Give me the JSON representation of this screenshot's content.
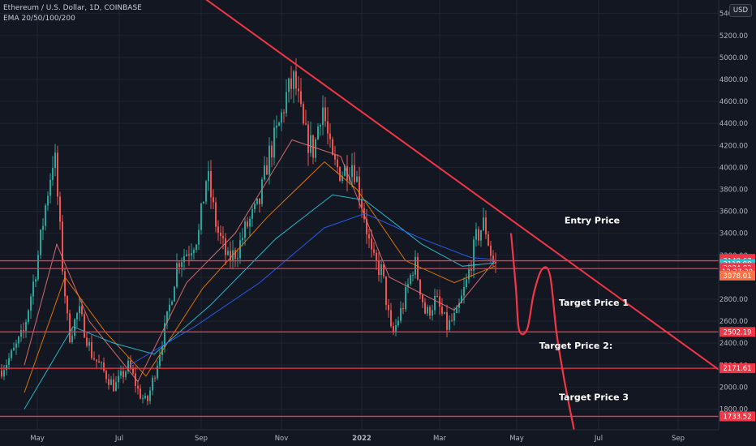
{
  "header": {
    "title": "Ethereum / U.S. Dollar, 1D, COINBASE",
    "indicator": "EMA 20/50/100/200"
  },
  "currency_button": "USD",
  "colors": {
    "bg": "#131722",
    "up": "#26a69a",
    "down": "#ef5350",
    "drawing": "#f23645",
    "ema20": "#e57373",
    "ema50": "#f57c00",
    "ema100": "#26c6da",
    "ema200": "#2962ff",
    "grid": "#1f2433"
  },
  "chart_data": {
    "type": "candlestick",
    "x_ticks": [
      "May",
      "Jul",
      "Sep",
      "Nov",
      "2022",
      "Mar",
      "May",
      "Jul",
      "Sep"
    ],
    "y_ticks": [
      1800,
      2000,
      2200,
      2400,
      2600,
      2800,
      3000,
      3200,
      3400,
      3600,
      3800,
      4000,
      4200,
      4400,
      4600,
      4800,
      5000,
      5200,
      5400
    ],
    "ylim": [
      1700,
      5500
    ],
    "price_path": [
      {
        "x": 0,
        "y": 2150
      },
      {
        "x": 14,
        "y": 2300
      },
      {
        "x": 28,
        "y": 2500
      },
      {
        "x": 44,
        "y": 3100
      },
      {
        "x": 56,
        "y": 3700
      },
      {
        "x": 66,
        "y": 4150
      },
      {
        "x": 76,
        "y": 3100
      },
      {
        "x": 84,
        "y": 2450
      },
      {
        "x": 96,
        "y": 2700
      },
      {
        "x": 112,
        "y": 2300
      },
      {
        "x": 126,
        "y": 2150
      },
      {
        "x": 140,
        "y": 2000
      },
      {
        "x": 158,
        "y": 2200
      },
      {
        "x": 170,
        "y": 1950
      },
      {
        "x": 180,
        "y": 1850
      },
      {
        "x": 192,
        "y": 2200
      },
      {
        "x": 206,
        "y": 2650
      },
      {
        "x": 218,
        "y": 3150
      },
      {
        "x": 232,
        "y": 3250
      },
      {
        "x": 244,
        "y": 3400
      },
      {
        "x": 254,
        "y": 3950
      },
      {
        "x": 266,
        "y": 3450
      },
      {
        "x": 280,
        "y": 3150
      },
      {
        "x": 292,
        "y": 3250
      },
      {
        "x": 302,
        "y": 3450
      },
      {
        "x": 318,
        "y": 3650
      },
      {
        "x": 330,
        "y": 4100
      },
      {
        "x": 342,
        "y": 4350
      },
      {
        "x": 352,
        "y": 4650
      },
      {
        "x": 362,
        "y": 4800
      },
      {
        "x": 374,
        "y": 4300
      },
      {
        "x": 386,
        "y": 4150
      },
      {
        "x": 396,
        "y": 4600
      },
      {
        "x": 408,
        "y": 4050
      },
      {
        "x": 420,
        "y": 3950
      },
      {
        "x": 434,
        "y": 4050
      },
      {
        "x": 446,
        "y": 3650
      },
      {
        "x": 458,
        "y": 3150
      },
      {
        "x": 470,
        "y": 3050
      },
      {
        "x": 482,
        "y": 2450
      },
      {
        "x": 496,
        "y": 2750
      },
      {
        "x": 510,
        "y": 3150
      },
      {
        "x": 524,
        "y": 2650
      },
      {
        "x": 536,
        "y": 2800
      },
      {
        "x": 550,
        "y": 2550
      },
      {
        "x": 562,
        "y": 2650
      },
      {
        "x": 574,
        "y": 2950
      },
      {
        "x": 586,
        "y": 3350
      },
      {
        "x": 596,
        "y": 3500
      },
      {
        "x": 606,
        "y": 3150
      },
      {
        "x": 612,
        "y": 3080
      }
    ],
    "ema_paths": {
      "ema20": [
        {
          "x": 30,
          "y": 2200
        },
        {
          "x": 70,
          "y": 3300
        },
        {
          "x": 110,
          "y": 2600
        },
        {
          "x": 170,
          "y": 2050
        },
        {
          "x": 230,
          "y": 2950
        },
        {
          "x": 290,
          "y": 3400
        },
        {
          "x": 360,
          "y": 4250
        },
        {
          "x": 420,
          "y": 4100
        },
        {
          "x": 480,
          "y": 3000
        },
        {
          "x": 560,
          "y": 2700
        },
        {
          "x": 610,
          "y": 3150
        }
      ],
      "ema50": [
        {
          "x": 30,
          "y": 1950
        },
        {
          "x": 80,
          "y": 3000
        },
        {
          "x": 130,
          "y": 2500
        },
        {
          "x": 180,
          "y": 2100
        },
        {
          "x": 250,
          "y": 2900
        },
        {
          "x": 330,
          "y": 3550
        },
        {
          "x": 400,
          "y": 4050
        },
        {
          "x": 440,
          "y": 3800
        },
        {
          "x": 500,
          "y": 3150
        },
        {
          "x": 560,
          "y": 2950
        },
        {
          "x": 610,
          "y": 3100
        }
      ],
      "ema100": [
        {
          "x": 30,
          "y": 1800
        },
        {
          "x": 90,
          "y": 2550
        },
        {
          "x": 140,
          "y": 2400
        },
        {
          "x": 190,
          "y": 2300
        },
        {
          "x": 260,
          "y": 2750
        },
        {
          "x": 340,
          "y": 3350
        },
        {
          "x": 410,
          "y": 3750
        },
        {
          "x": 450,
          "y": 3700
        },
        {
          "x": 520,
          "y": 3300
        },
        {
          "x": 570,
          "y": 3100
        },
        {
          "x": 610,
          "y": 3130
        }
      ],
      "ema200": [
        {
          "x": 160,
          "y": 2200
        },
        {
          "x": 240,
          "y": 2550
        },
        {
          "x": 320,
          "y": 2950
        },
        {
          "x": 400,
          "y": 3450
        },
        {
          "x": 450,
          "y": 3580
        },
        {
          "x": 520,
          "y": 3350
        },
        {
          "x": 580,
          "y": 3180
        },
        {
          "x": 610,
          "y": 3160
        }
      ]
    },
    "trendline": {
      "from": {
        "x": 248,
        "y": 5560
      },
      "to": {
        "x": 914,
        "y": 2010
      }
    },
    "horizontal_levels": [
      3149.67,
      3078.01,
      2502.19,
      2171.61,
      1733.52
    ],
    "projection_path": [
      {
        "x": 630,
        "y": 3400
      },
      {
        "x": 636,
        "y": 2900
      },
      {
        "x": 640,
        "y": 2520
      },
      {
        "x": 650,
        "y": 2530
      },
      {
        "x": 658,
        "y": 2850
      },
      {
        "x": 668,
        "y": 3070
      },
      {
        "x": 678,
        "y": 3020
      },
      {
        "x": 686,
        "y": 2500
      },
      {
        "x": 696,
        "y": 2050
      },
      {
        "x": 708,
        "y": 1600
      }
    ],
    "annotations": [
      {
        "text": "Entry Price",
        "x": 730,
        "y": 3490
      },
      {
        "text": "Target Price 1",
        "x": 732,
        "y": 2740
      },
      {
        "text": "Target Price 2:",
        "x": 710,
        "y": 2350
      },
      {
        "text": "Target Price 3",
        "x": 732,
        "y": 1880
      }
    ],
    "price_labels": [
      {
        "text": "3166.59",
        "price": 3166.59,
        "bg": "#2962ff"
      },
      {
        "text": "3166.13",
        "price": 3166.13,
        "bg": "#f23645"
      },
      {
        "text": "3149.67",
        "price": 3149.67,
        "bg": "#f23645"
      },
      {
        "text": "3118.98",
        "price": 3118.98,
        "bg": "#26c6da"
      },
      {
        "text": "3084.83",
        "price": 3084.83,
        "bg": "#f23645"
      },
      {
        "text": "12:27:30",
        "price": 3050,
        "bg": "#f23645"
      },
      {
        "text": "3078.01",
        "price": 3015,
        "bg": "#ff7043"
      },
      {
        "text": "2502.19",
        "price": 2502.19,
        "bg": "#f23645"
      },
      {
        "text": "2171.61",
        "price": 2171.61,
        "bg": "#f23645"
      },
      {
        "text": "1733.52",
        "price": 1733.52,
        "bg": "#f23645"
      }
    ],
    "grid": true
  }
}
